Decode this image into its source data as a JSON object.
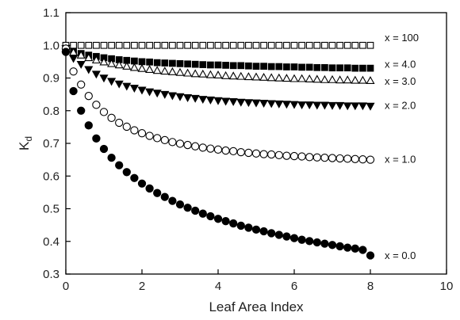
{
  "chart_data": {
    "type": "scatter",
    "title": "",
    "xlabel": "Leaf Area Index",
    "ylabel": {
      "main": "K",
      "sub": "d"
    },
    "xlim": [
      0,
      10
    ],
    "ylim": [
      0.3,
      1.1
    ],
    "xticks": [
      0,
      2,
      4,
      6,
      8,
      10
    ],
    "yticks": [
      0.3,
      0.4,
      0.5,
      0.6,
      0.7,
      0.8,
      0.9,
      1.0,
      1.1
    ],
    "ytick_labels": [
      "0.3",
      "0.4",
      "0.5",
      "0.6",
      "0.7",
      "0.8",
      "0.9",
      "1.0",
      "1.1"
    ],
    "grid": false,
    "x": [
      0.0,
      0.2,
      0.4,
      0.6,
      0.8,
      1.0,
      1.2,
      1.4,
      1.6,
      1.8,
      2.0,
      2.2,
      2.4,
      2.6,
      2.8,
      3.0,
      3.2,
      3.4,
      3.6,
      3.8,
      4.0,
      4.2,
      4.4,
      4.6,
      4.8,
      5.0,
      5.2,
      5.4,
      5.6,
      5.8,
      6.0,
      6.2,
      6.4,
      6.6,
      6.8,
      7.0,
      7.2,
      7.4,
      7.6,
      7.8,
      8.0
    ],
    "series": [
      {
        "name": "x = 100",
        "marker": "square",
        "fill": "open",
        "color": "#000000",
        "values": [
          1.0,
          1.0,
          1.0,
          1.0,
          1.0,
          1.0,
          1.0,
          1.0,
          1.0,
          1.0,
          1.0,
          1.0,
          1.0,
          1.0,
          1.0,
          1.0,
          1.0,
          1.0,
          1.0,
          1.0,
          1.0,
          1.0,
          1.0,
          1.0,
          1.0,
          1.0,
          1.0,
          1.0,
          1.0,
          1.0,
          1.0,
          1.0,
          1.0,
          1.0,
          1.0,
          1.0,
          1.0,
          1.0,
          1.0,
          1.0,
          1.0
        ]
      },
      {
        "name": "x = 4.0",
        "marker": "square",
        "fill": "filled",
        "color": "#000000",
        "values": [
          0.99,
          0.982,
          0.975,
          0.97,
          0.966,
          0.962,
          0.959,
          0.956,
          0.954,
          0.952,
          0.95,
          0.949,
          0.947,
          0.946,
          0.945,
          0.944,
          0.943,
          0.942,
          0.941,
          0.94,
          0.94,
          0.939,
          0.938,
          0.938,
          0.937,
          0.936,
          0.936,
          0.935,
          0.935,
          0.934,
          0.934,
          0.933,
          0.933,
          0.932,
          0.932,
          0.931,
          0.931,
          0.931,
          0.93,
          0.93,
          0.93
        ]
      },
      {
        "name": "x = 3.0",
        "marker": "triangle-up",
        "fill": "open",
        "color": "#000000",
        "values": [
          0.99,
          0.979,
          0.97,
          0.962,
          0.955,
          0.949,
          0.944,
          0.94,
          0.936,
          0.932,
          0.929,
          0.926,
          0.923,
          0.921,
          0.919,
          0.917,
          0.915,
          0.913,
          0.912,
          0.91,
          0.909,
          0.907,
          0.906,
          0.905,
          0.904,
          0.903,
          0.902,
          0.901,
          0.9,
          0.899,
          0.898,
          0.898,
          0.897,
          0.896,
          0.895,
          0.895,
          0.894,
          0.894,
          0.893,
          0.893,
          0.892
        ]
      },
      {
        "name": "x = 2.0",
        "marker": "triangle-down",
        "fill": "filled",
        "color": "#000000",
        "values": [
          0.99,
          0.96,
          0.942,
          0.926,
          0.912,
          0.9,
          0.89,
          0.882,
          0.875,
          0.869,
          0.863,
          0.858,
          0.854,
          0.85,
          0.846,
          0.843,
          0.84,
          0.838,
          0.835,
          0.833,
          0.831,
          0.829,
          0.828,
          0.826,
          0.825,
          0.824,
          0.823,
          0.822,
          0.821,
          0.82,
          0.819,
          0.818,
          0.818,
          0.817,
          0.817,
          0.816,
          0.816,
          0.815,
          0.815,
          0.815,
          0.814
        ]
      },
      {
        "name": "x = 1.0",
        "marker": "circle",
        "fill": "open",
        "color": "#000000",
        "values": [
          0.99,
          0.92,
          0.88,
          0.845,
          0.818,
          0.796,
          0.778,
          0.763,
          0.751,
          0.74,
          0.731,
          0.723,
          0.716,
          0.71,
          0.704,
          0.699,
          0.695,
          0.691,
          0.687,
          0.684,
          0.681,
          0.678,
          0.676,
          0.673,
          0.671,
          0.669,
          0.667,
          0.666,
          0.664,
          0.662,
          0.661,
          0.66,
          0.658,
          0.657,
          0.656,
          0.655,
          0.654,
          0.653,
          0.652,
          0.651,
          0.65
        ]
      },
      {
        "name": "x = 0.0",
        "marker": "circle",
        "fill": "filled",
        "color": "#000000",
        "values": [
          0.98,
          0.86,
          0.8,
          0.755,
          0.715,
          0.683,
          0.656,
          0.633,
          0.612,
          0.594,
          0.577,
          0.562,
          0.548,
          0.536,
          0.524,
          0.513,
          0.503,
          0.494,
          0.485,
          0.477,
          0.469,
          0.462,
          0.455,
          0.448,
          0.442,
          0.436,
          0.431,
          0.425,
          0.42,
          0.415,
          0.41,
          0.405,
          0.401,
          0.397,
          0.393,
          0.389,
          0.385,
          0.381,
          0.378,
          0.374,
          0.357
        ]
      }
    ],
    "series_labels": [
      {
        "text": "x = 100",
        "y": 1.025
      },
      {
        "text": "x = 4.0",
        "y": 0.944
      },
      {
        "text": "x = 3.0",
        "y": 0.892
      },
      {
        "text": "x = 2.0",
        "y": 0.818
      },
      {
        "text": "x = 1.0",
        "y": 0.653
      },
      {
        "text": "x = 0.0",
        "y": 0.358
      }
    ]
  }
}
